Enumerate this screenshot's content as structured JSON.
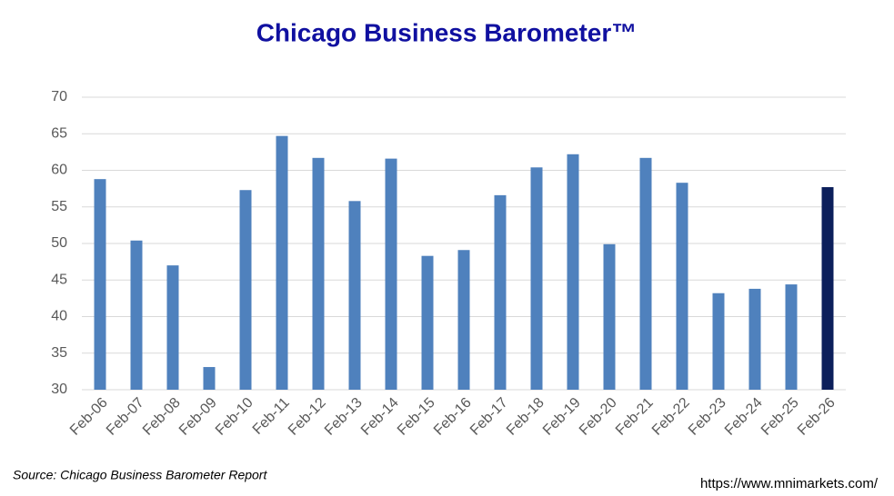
{
  "chart_data": {
    "type": "bar",
    "title": "Chicago Business Barometer™",
    "categories": [
      "Feb-06",
      "Feb-07",
      "Feb-08",
      "Feb-09",
      "Feb-10",
      "Feb-11",
      "Feb-12",
      "Feb-13",
      "Feb-14",
      "Feb-15",
      "Feb-16",
      "Feb-17",
      "Feb-18",
      "Feb-19",
      "Feb-20",
      "Feb-21",
      "Feb-22",
      "Feb-23",
      "Feb-24",
      "Feb-25",
      "Feb-26"
    ],
    "values": [
      58.8,
      50.4,
      47.0,
      33.1,
      57.3,
      64.7,
      61.7,
      55.8,
      61.6,
      48.3,
      49.1,
      56.6,
      60.4,
      62.2,
      49.9,
      61.7,
      58.3,
      43.2,
      43.8,
      44.4,
      57.7
    ],
    "colors": [
      "#4f81bd",
      "#4f81bd",
      "#4f81bd",
      "#4f81bd",
      "#4f81bd",
      "#4f81bd",
      "#4f81bd",
      "#4f81bd",
      "#4f81bd",
      "#4f81bd",
      "#4f81bd",
      "#4f81bd",
      "#4f81bd",
      "#4f81bd",
      "#4f81bd",
      "#4f81bd",
      "#4f81bd",
      "#4f81bd",
      "#4f81bd",
      "#4f81bd",
      "#0c1f5b"
    ],
    "ylim": [
      30,
      70
    ],
    "yticks": [
      30,
      35,
      40,
      45,
      50,
      55,
      60,
      65,
      70
    ],
    "grid": true,
    "source": "Source: Chicago Business Barometer Report",
    "url": "https://www.mnimarkets.com/"
  }
}
